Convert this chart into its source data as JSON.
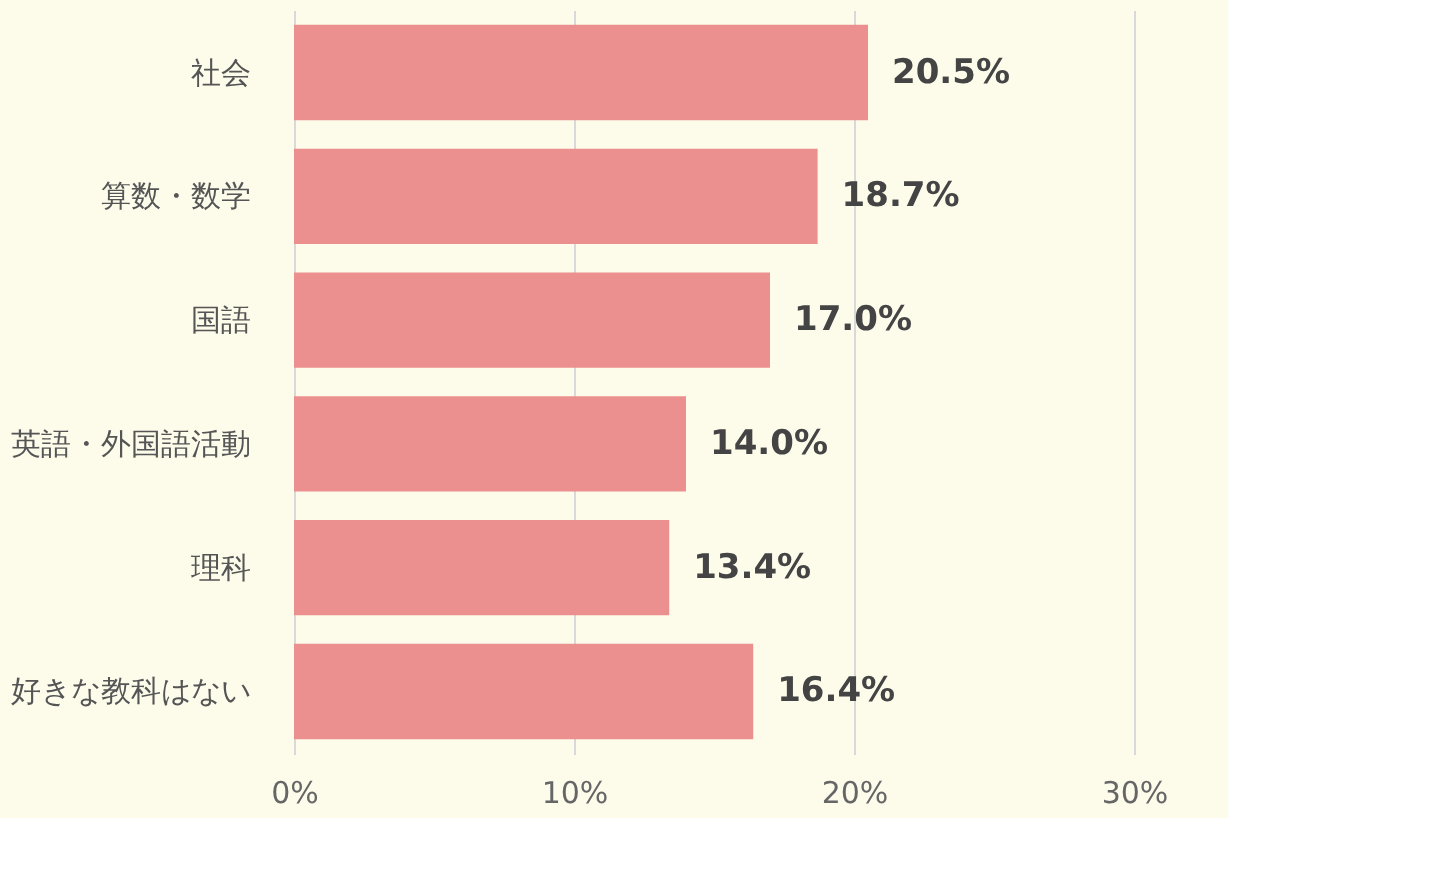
{
  "chart_data": {
    "type": "bar",
    "orientation": "horizontal",
    "categories": [
      "社会",
      "算数・数学",
      "国語",
      "英語・外国語活動",
      "理科",
      "好きな教科はない"
    ],
    "values": [
      20.5,
      18.7,
      17.0,
      14.0,
      13.4,
      16.4
    ],
    "value_labels": [
      "20.5%",
      "18.7%",
      "17.0%",
      "14.0%",
      "13.4%",
      "16.4%"
    ],
    "color": "#ec8f8f",
    "xlim": [
      0,
      30
    ],
    "xticks": [
      {
        "value": 0,
        "label": "0%"
      },
      {
        "value": 10,
        "label": "10%"
      },
      {
        "value": 20,
        "label": "20%"
      },
      {
        "value": 30,
        "label": "30%"
      }
    ],
    "grid": "x"
  }
}
